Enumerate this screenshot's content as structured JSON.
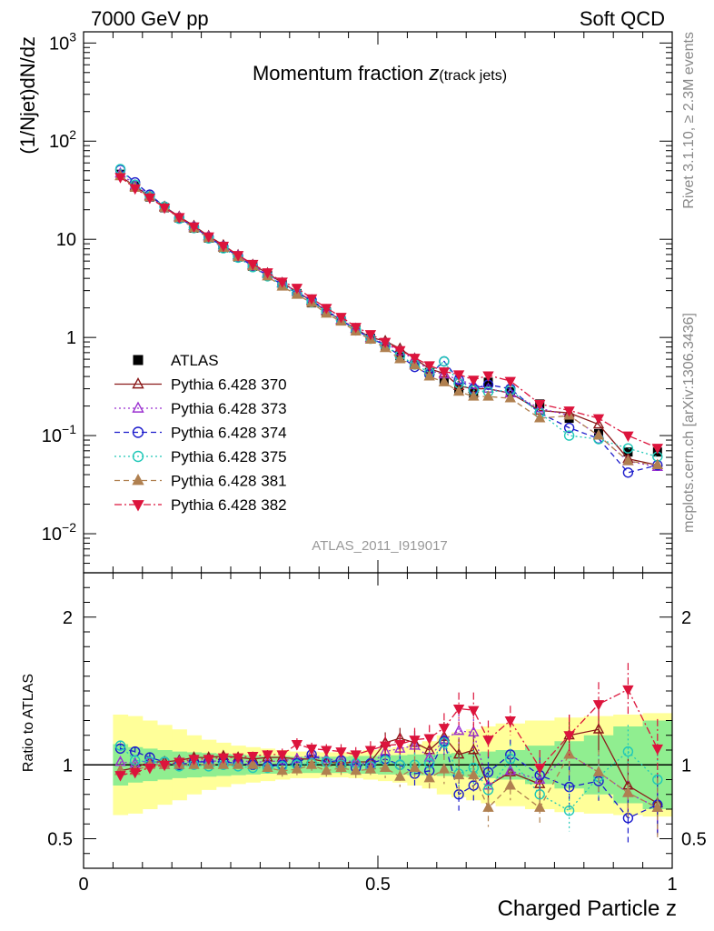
{
  "header": {
    "left": "7000 GeV pp",
    "right": "Soft QCD"
  },
  "side_labels": {
    "rivet": "Rivet 3.1.10, ≥ 2.3M events",
    "mcplots": "mcplots.cern.ch [arXiv:1306.3436]"
  },
  "chart_data": [
    {
      "type": "scatter",
      "title": "Momentum fraction ",
      "title_sub": "z",
      "title_sub_suffix": "(track jets)",
      "ylabel": "(1/Njet)dN/dz",
      "xlabel": "",
      "yscale": "log",
      "xlim": [
        0,
        1
      ],
      "ylim": [
        0.004,
        1300
      ],
      "analysis_tag": "ATLAS_2011_I919017",
      "y_ticks": [
        {
          "value": 1000,
          "mantissa": "10",
          "exp": "3"
        },
        {
          "value": 100,
          "mantissa": "10",
          "exp": "2"
        },
        {
          "value": 10,
          "mantissa": "10",
          "exp": ""
        },
        {
          "value": 1,
          "mantissa": "1",
          "exp": ""
        },
        {
          "value": 0.1,
          "mantissa": "10",
          "exp": "−1"
        },
        {
          "value": 0.01,
          "mantissa": "10",
          "exp": "−2"
        }
      ],
      "x": [
        0.0625,
        0.0875,
        0.1125,
        0.1375,
        0.1625,
        0.1875,
        0.2125,
        0.2375,
        0.2625,
        0.2875,
        0.3125,
        0.3375,
        0.3625,
        0.3875,
        0.4125,
        0.4375,
        0.4625,
        0.4875,
        0.5125,
        0.5375,
        0.5625,
        0.5875,
        0.6125,
        0.6375,
        0.6625,
        0.6875,
        0.725,
        0.775,
        0.825,
        0.875,
        0.925,
        0.975
      ],
      "series": [
        {
          "name": "ATLAS",
          "color": "#000000",
          "marker": "square-filled",
          "dash": "none",
          "values": [
            46.0,
            35.0,
            27.0,
            21.0,
            16.5,
            13.0,
            10.3,
            8.2,
            6.6,
            5.3,
            4.3,
            3.45,
            2.8,
            2.25,
            1.82,
            1.48,
            1.2,
            0.98,
            0.8,
            0.65,
            0.53,
            0.44,
            0.36,
            0.3,
            0.27,
            0.35,
            0.28,
            0.21,
            0.15,
            0.105,
            0.068,
            0.068
          ]
        },
        {
          "name": "Pythia 6.428 370",
          "color": "#8b1a1a",
          "marker": "triangle-up-open",
          "dash": "none",
          "values": [
            44.0,
            34.5,
            27.5,
            21.5,
            17.0,
            13.7,
            10.8,
            8.7,
            6.9,
            5.5,
            4.5,
            3.6,
            2.92,
            2.35,
            1.85,
            1.5,
            1.22,
            1.0,
            0.92,
            0.77,
            0.61,
            0.48,
            0.43,
            0.32,
            0.3,
            0.3,
            0.27,
            0.18,
            0.17,
            0.13,
            0.058,
            0.05
          ]
        },
        {
          "name": "Pythia 6.428 373",
          "color": "#9b30d0",
          "marker": "triangle-up-open",
          "dash": "dotted",
          "values": [
            47.0,
            35.5,
            28.0,
            21.0,
            16.8,
            13.3,
            10.6,
            8.4,
            6.8,
            5.4,
            4.4,
            3.55,
            2.92,
            2.4,
            1.9,
            1.52,
            1.23,
            0.98,
            0.87,
            0.72,
            0.6,
            0.46,
            0.42,
            0.37,
            0.33,
            0.3,
            0.27,
            0.19,
            0.16,
            0.1,
            0.055,
            0.048
          ]
        },
        {
          "name": "Pythia 6.428 374",
          "color": "#1c1ccc",
          "marker": "circle-open",
          "dash": "dashed",
          "values": [
            51.0,
            38.0,
            28.5,
            21.5,
            16.5,
            13.3,
            10.5,
            8.4,
            6.7,
            5.3,
            4.25,
            3.45,
            2.82,
            2.4,
            1.85,
            1.52,
            1.18,
            0.99,
            0.83,
            0.65,
            0.5,
            0.42,
            0.57,
            0.37,
            0.3,
            0.33,
            0.3,
            0.17,
            0.12,
            0.093,
            0.042,
            0.05
          ]
        },
        {
          "name": "Pythia 6.428 375",
          "color": "#20c8b8",
          "marker": "circle-open",
          "dash": "dotted",
          "values": [
            52.0,
            36.0,
            27.5,
            21.5,
            16.2,
            13.0,
            10.2,
            8.1,
            6.5,
            5.2,
            4.2,
            3.4,
            2.82,
            2.28,
            1.85,
            1.5,
            1.2,
            0.97,
            0.82,
            0.65,
            0.53,
            0.44,
            0.57,
            0.34,
            0.29,
            0.28,
            0.29,
            0.17,
            0.1,
            0.092,
            0.074,
            0.061
          ]
        },
        {
          "name": "Pythia 6.428 381",
          "color": "#b08050",
          "marker": "triangle-up-filled",
          "dash": "dashed",
          "values": [
            44.0,
            33.5,
            27.0,
            21.0,
            16.5,
            13.0,
            10.3,
            8.2,
            6.6,
            5.3,
            4.2,
            3.3,
            2.72,
            2.25,
            1.75,
            1.45,
            1.15,
            0.95,
            0.78,
            0.6,
            0.52,
            0.4,
            0.35,
            0.28,
            0.25,
            0.25,
            0.24,
            0.15,
            0.16,
            0.1,
            0.055,
            0.05
          ]
        },
        {
          "name": "Pythia 6.428 382",
          "color": "#dc143c",
          "marker": "triangle-down-filled",
          "dash": "dashdot",
          "values": [
            43.0,
            33.0,
            26.5,
            21.0,
            16.8,
            13.5,
            10.7,
            8.6,
            6.9,
            5.6,
            4.6,
            3.7,
            3.2,
            2.5,
            2.0,
            1.62,
            1.28,
            1.08,
            0.9,
            0.74,
            0.62,
            0.52,
            0.45,
            0.42,
            0.37,
            0.41,
            0.36,
            0.21,
            0.18,
            0.15,
            0.1,
            0.075
          ]
        }
      ]
    },
    {
      "type": "scatter",
      "title": "",
      "xlabel": "Charged Particle z",
      "ylabel": "Ratio to ATLAS",
      "xlim": [
        0,
        1
      ],
      "ylim": [
        0.3,
        2.3
      ],
      "x_ticks": [
        {
          "value": 0,
          "label": "0"
        },
        {
          "value": 0.5,
          "label": "0.5"
        },
        {
          "value": 1,
          "label": "1"
        }
      ],
      "y_ticks": [
        {
          "value": 2,
          "label": "2"
        },
        {
          "value": 1,
          "label": "1"
        },
        {
          "value": 0.5,
          "label": "0.5"
        }
      ],
      "reference_line": 1,
      "data_uncertainty": {
        "inner_band_color": "#90ee90",
        "outer_band_color": "#ffff99",
        "x_edges": [
          0.05,
          0.075,
          0.1,
          0.125,
          0.15,
          0.175,
          0.2,
          0.225,
          0.25,
          0.275,
          0.3,
          0.325,
          0.35,
          0.375,
          0.4,
          0.425,
          0.45,
          0.475,
          0.5,
          0.525,
          0.55,
          0.575,
          0.6,
          0.625,
          0.65,
          0.675,
          0.7,
          0.75,
          0.8,
          0.85,
          0.9,
          0.95,
          1.0
        ],
        "inner_halfwidth": [
          0.14,
          0.12,
          0.11,
          0.1,
          0.09,
          0.085,
          0.08,
          0.075,
          0.07,
          0.065,
          0.06,
          0.06,
          0.055,
          0.055,
          0.055,
          0.055,
          0.06,
          0.06,
          0.065,
          0.065,
          0.07,
          0.07,
          0.075,
          0.08,
          0.085,
          0.09,
          0.1,
          0.13,
          0.16,
          0.2,
          0.26,
          0.3
        ],
        "outer_halfwidth": [
          0.34,
          0.33,
          0.3,
          0.27,
          0.24,
          0.2,
          0.17,
          0.15,
          0.13,
          0.12,
          0.11,
          0.1,
          0.09,
          0.09,
          0.085,
          0.085,
          0.09,
          0.1,
          0.11,
          0.12,
          0.14,
          0.16,
          0.2,
          0.22,
          0.24,
          0.26,
          0.28,
          0.3,
          0.32,
          0.33,
          0.34,
          0.35
        ]
      },
      "series": [
        {
          "name": "Pythia 6.428 370",
          "values": [
            0.96,
            0.98,
            1.02,
            1.02,
            1.03,
            1.05,
            1.05,
            1.06,
            1.05,
            1.04,
            1.05,
            1.05,
            1.04,
            1.04,
            1.02,
            1.01,
            1.02,
            1.02,
            1.15,
            1.18,
            1.15,
            1.1,
            1.19,
            1.07,
            1.1,
            0.86,
            0.95,
            0.87,
            1.2,
            1.24,
            0.86,
            0.74
          ],
          "err": [
            0.03,
            0.03,
            0.03,
            0.03,
            0.03,
            0.03,
            0.03,
            0.03,
            0.03,
            0.03,
            0.03,
            0.04,
            0.04,
            0.04,
            0.04,
            0.05,
            0.05,
            0.06,
            0.07,
            0.07,
            0.08,
            0.09,
            0.1,
            0.11,
            0.12,
            0.13,
            0.1,
            0.12,
            0.14,
            0.15,
            0.18,
            0.2
          ]
        },
        {
          "name": "Pythia 6.428 373",
          "values": [
            1.02,
            1.01,
            1.03,
            1.0,
            1.02,
            1.02,
            1.03,
            1.02,
            1.03,
            1.02,
            1.02,
            1.03,
            1.04,
            1.07,
            1.04,
            1.03,
            1.02,
            1.0,
            1.09,
            1.11,
            1.13,
            1.05,
            1.17,
            1.23,
            1.22,
            0.86,
            0.96,
            0.9,
            1.07,
            0.95,
            0.81,
            0.71
          ],
          "err": [
            0.03,
            0.03,
            0.03,
            0.03,
            0.03,
            0.03,
            0.03,
            0.03,
            0.03,
            0.03,
            0.03,
            0.04,
            0.04,
            0.04,
            0.04,
            0.05,
            0.05,
            0.06,
            0.07,
            0.07,
            0.08,
            0.09,
            0.1,
            0.11,
            0.12,
            0.13,
            0.1,
            0.12,
            0.14,
            0.15,
            0.18,
            0.2
          ]
        },
        {
          "name": "Pythia 6.428 374",
          "values": [
            1.11,
            1.09,
            1.05,
            1.02,
            1.0,
            1.02,
            1.02,
            1.02,
            1.01,
            1.0,
            0.99,
            1.0,
            1.01,
            1.07,
            1.02,
            1.03,
            0.98,
            1.01,
            1.04,
            1.0,
            0.94,
            0.96,
            1.16,
            0.8,
            0.86,
            0.95,
            1.07,
            0.93,
            0.85,
            0.89,
            0.64,
            0.73
          ],
          "err": [
            0.03,
            0.03,
            0.03,
            0.03,
            0.03,
            0.03,
            0.03,
            0.03,
            0.03,
            0.03,
            0.03,
            0.04,
            0.04,
            0.04,
            0.04,
            0.05,
            0.05,
            0.06,
            0.07,
            0.07,
            0.08,
            0.09,
            0.1,
            0.11,
            0.12,
            0.13,
            0.1,
            0.12,
            0.14,
            0.15,
            0.18,
            0.2
          ]
        },
        {
          "name": "Pythia 6.428 375",
          "values": [
            1.13,
            1.03,
            1.02,
            1.02,
            0.99,
            1.0,
            0.99,
            1.0,
            0.99,
            0.98,
            0.98,
            0.99,
            1.0,
            1.01,
            1.02,
            1.0,
            1.01,
            0.99,
            1.03,
            1.0,
            1.0,
            1.01,
            1.15,
            0.94,
            0.98,
            0.83,
            1.04,
            0.8,
            0.69,
            0.92,
            1.09,
            0.9
          ],
          "err": [
            0.03,
            0.03,
            0.03,
            0.03,
            0.03,
            0.03,
            0.03,
            0.03,
            0.03,
            0.03,
            0.03,
            0.04,
            0.04,
            0.04,
            0.04,
            0.05,
            0.05,
            0.06,
            0.07,
            0.07,
            0.08,
            0.09,
            0.1,
            0.11,
            0.12,
            0.13,
            0.1,
            0.12,
            0.14,
            0.15,
            0.18,
            0.2
          ]
        },
        {
          "name": "Pythia 6.428 381",
          "values": [
            0.96,
            0.96,
            1.0,
            1.0,
            1.0,
            1.0,
            1.0,
            1.0,
            1.0,
            1.0,
            0.98,
            0.96,
            0.97,
            1.0,
            0.96,
            0.98,
            0.96,
            0.97,
            0.98,
            0.92,
            0.98,
            0.91,
            0.97,
            0.93,
            0.93,
            0.71,
            0.86,
            0.71,
            1.07,
            0.95,
            0.81,
            0.71
          ],
          "err": [
            0.03,
            0.03,
            0.03,
            0.03,
            0.03,
            0.03,
            0.03,
            0.03,
            0.03,
            0.03,
            0.03,
            0.04,
            0.04,
            0.04,
            0.04,
            0.05,
            0.05,
            0.06,
            0.07,
            0.07,
            0.08,
            0.09,
            0.1,
            0.11,
            0.12,
            0.13,
            0.1,
            0.12,
            0.14,
            0.15,
            0.18,
            0.2
          ]
        },
        {
          "name": "Pythia 6.428 382",
          "values": [
            0.93,
            0.95,
            0.98,
            1.0,
            1.02,
            1.04,
            1.04,
            1.05,
            1.05,
            1.06,
            1.07,
            1.07,
            1.14,
            1.11,
            1.1,
            1.09,
            1.07,
            1.1,
            1.13,
            1.14,
            1.17,
            1.18,
            1.25,
            1.38,
            1.37,
            1.17,
            1.3,
            0.98,
            1.2,
            1.41,
            1.51,
            1.11
          ],
          "err": [
            0.03,
            0.03,
            0.03,
            0.03,
            0.03,
            0.03,
            0.03,
            0.03,
            0.03,
            0.03,
            0.03,
            0.04,
            0.04,
            0.04,
            0.04,
            0.05,
            0.05,
            0.06,
            0.07,
            0.07,
            0.08,
            0.09,
            0.1,
            0.11,
            0.12,
            0.13,
            0.1,
            0.12,
            0.14,
            0.15,
            0.18,
            0.2
          ]
        }
      ]
    }
  ]
}
